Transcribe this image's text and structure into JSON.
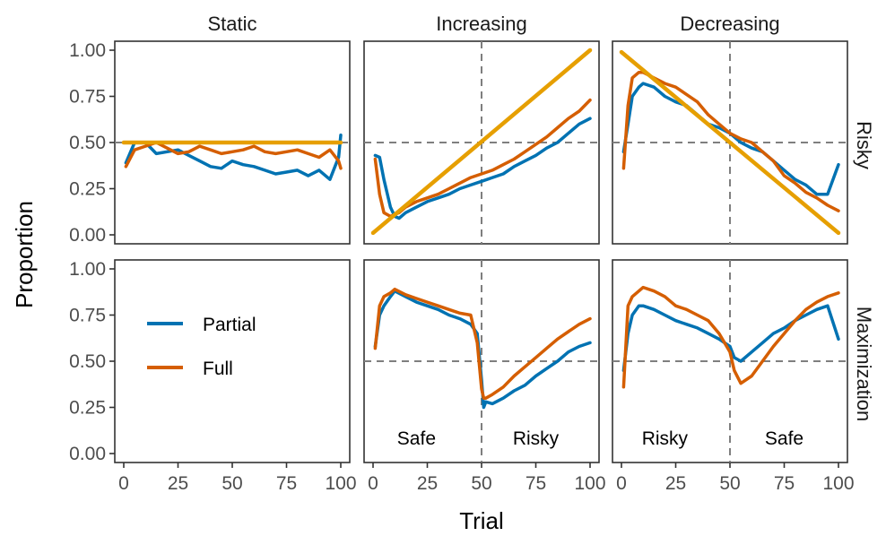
{
  "chart_data": {
    "type": "line",
    "xlabel": "Trial",
    "ylabel": "Proportion",
    "xlim": [
      0,
      100
    ],
    "ylim": [
      0,
      1
    ],
    "xticks": [
      "0",
      "25",
      "50",
      "75",
      "100"
    ],
    "yticks": [
      "0.00",
      "0.25",
      "0.50",
      "0.75",
      "1.00"
    ],
    "columns": [
      "Static",
      "Increasing",
      "Decreasing"
    ],
    "rows": [
      "Risky",
      "Maximization"
    ],
    "reference_lines": {
      "horizontal_y": 0.5,
      "vertical_x": 50,
      "style": "dashed"
    },
    "colors": {
      "Partial": "#0072B2",
      "Full": "#D55E00",
      "Expected": "#E69F00"
    },
    "legend": {
      "placement": "inside bottom-left panel",
      "entries": [
        "Partial",
        "Full"
      ]
    },
    "panels": [
      {
        "column": "Static",
        "row": "Risky",
        "series": [
          {
            "name": "Partial",
            "x": [
              1,
              5,
              10,
              15,
              20,
              25,
              30,
              35,
              40,
              45,
              50,
              55,
              60,
              65,
              70,
              75,
              80,
              85,
              90,
              95,
              99,
              100
            ],
            "values": [
              0.39,
              0.5,
              0.5,
              0.44,
              0.45,
              0.46,
              0.43,
              0.4,
              0.37,
              0.36,
              0.4,
              0.38,
              0.37,
              0.35,
              0.33,
              0.34,
              0.35,
              0.32,
              0.35,
              0.3,
              0.42,
              0.54
            ]
          },
          {
            "name": "Full",
            "x": [
              1,
              5,
              10,
              15,
              20,
              25,
              30,
              35,
              40,
              45,
              50,
              55,
              60,
              65,
              70,
              75,
              80,
              85,
              90,
              95,
              99,
              100
            ],
            "values": [
              0.37,
              0.46,
              0.48,
              0.5,
              0.47,
              0.44,
              0.45,
              0.48,
              0.46,
              0.44,
              0.45,
              0.46,
              0.48,
              0.45,
              0.44,
              0.45,
              0.46,
              0.44,
              0.42,
              0.46,
              0.4,
              0.36
            ]
          },
          {
            "name": "",
            "x": [
              0,
              100
            ],
            "values": [
              0.5,
              0.5
            ]
          }
        ]
      },
      {
        "column": "Increasing",
        "row": "Risky",
        "series": [
          {
            "name": "Partial",
            "x": [
              1,
              3,
              5,
              8,
              10,
              12,
              15,
              20,
              25,
              30,
              35,
              40,
              45,
              50,
              55,
              60,
              65,
              70,
              75,
              80,
              85,
              90,
              95,
              100
            ],
            "values": [
              0.43,
              0.42,
              0.3,
              0.15,
              0.1,
              0.09,
              0.12,
              0.15,
              0.18,
              0.2,
              0.22,
              0.25,
              0.27,
              0.29,
              0.31,
              0.33,
              0.37,
              0.4,
              0.43,
              0.47,
              0.5,
              0.55,
              0.6,
              0.63
            ]
          },
          {
            "name": "Full",
            "x": [
              1,
              3,
              5,
              8,
              10,
              12,
              15,
              20,
              25,
              30,
              35,
              40,
              45,
              50,
              55,
              60,
              65,
              70,
              75,
              80,
              85,
              90,
              95,
              100
            ],
            "values": [
              0.41,
              0.22,
              0.12,
              0.1,
              0.11,
              0.12,
              0.15,
              0.18,
              0.2,
              0.22,
              0.25,
              0.28,
              0.31,
              0.33,
              0.35,
              0.38,
              0.41,
              0.45,
              0.49,
              0.53,
              0.58,
              0.63,
              0.67,
              0.73
            ]
          },
          {
            "name": "",
            "x": [
              0,
              100
            ],
            "values": [
              0.01,
              1.0
            ]
          }
        ]
      },
      {
        "column": "Decreasing",
        "row": "Risky",
        "series": [
          {
            "name": "Partial",
            "x": [
              1,
              3,
              5,
              8,
              10,
              15,
              20,
              25,
              30,
              35,
              40,
              45,
              50,
              55,
              60,
              65,
              70,
              75,
              80,
              85,
              90,
              95,
              100
            ],
            "values": [
              0.45,
              0.6,
              0.75,
              0.8,
              0.82,
              0.8,
              0.75,
              0.72,
              0.7,
              0.65,
              0.6,
              0.58,
              0.55,
              0.5,
              0.47,
              0.45,
              0.4,
              0.35,
              0.3,
              0.27,
              0.22,
              0.22,
              0.38
            ]
          },
          {
            "name": "Full",
            "x": [
              1,
              3,
              5,
              8,
              10,
              15,
              20,
              25,
              30,
              35,
              40,
              45,
              50,
              55,
              60,
              65,
              70,
              75,
              80,
              85,
              90,
              95,
              100
            ],
            "values": [
              0.36,
              0.7,
              0.85,
              0.88,
              0.88,
              0.85,
              0.82,
              0.8,
              0.76,
              0.72,
              0.65,
              0.6,
              0.55,
              0.52,
              0.5,
              0.45,
              0.4,
              0.32,
              0.28,
              0.23,
              0.2,
              0.16,
              0.13
            ]
          },
          {
            "name": "",
            "x": [
              0,
              100
            ],
            "values": [
              0.99,
              0.01
            ]
          }
        ]
      },
      {
        "column": "Increasing",
        "row": "Maximization",
        "annotations": [
          "Safe",
          "Risky"
        ],
        "series": [
          {
            "name": "Partial",
            "x": [
              1,
              3,
              5,
              8,
              10,
              15,
              20,
              25,
              30,
              35,
              40,
              45,
              48,
              50,
              51,
              52,
              55,
              60,
              65,
              70,
              75,
              80,
              85,
              90,
              95,
              100
            ],
            "values": [
              0.58,
              0.75,
              0.8,
              0.85,
              0.88,
              0.85,
              0.82,
              0.8,
              0.78,
              0.75,
              0.73,
              0.7,
              0.65,
              0.4,
              0.25,
              0.28,
              0.27,
              0.3,
              0.34,
              0.37,
              0.42,
              0.46,
              0.5,
              0.55,
              0.58,
              0.6
            ]
          },
          {
            "name": "Full",
            "x": [
              1,
              3,
              5,
              8,
              10,
              15,
              20,
              25,
              30,
              35,
              40,
              45,
              48,
              50,
              51,
              52,
              55,
              60,
              65,
              70,
              75,
              80,
              85,
              90,
              95,
              100
            ],
            "values": [
              0.57,
              0.8,
              0.85,
              0.87,
              0.89,
              0.86,
              0.84,
              0.82,
              0.8,
              0.78,
              0.76,
              0.75,
              0.6,
              0.35,
              0.3,
              0.3,
              0.32,
              0.36,
              0.42,
              0.47,
              0.52,
              0.57,
              0.62,
              0.66,
              0.7,
              0.73
            ]
          }
        ]
      },
      {
        "column": "Decreasing",
        "row": "Maximization",
        "annotations": [
          "Risky",
          "Safe"
        ],
        "series": [
          {
            "name": "Partial",
            "x": [
              1,
              3,
              5,
              8,
              10,
              15,
              20,
              25,
              30,
              35,
              40,
              45,
              50,
              52,
              55,
              60,
              65,
              70,
              75,
              80,
              85,
              90,
              95,
              100
            ],
            "values": [
              0.45,
              0.65,
              0.75,
              0.8,
              0.8,
              0.78,
              0.75,
              0.72,
              0.7,
              0.68,
              0.65,
              0.62,
              0.58,
              0.52,
              0.5,
              0.55,
              0.6,
              0.65,
              0.68,
              0.72,
              0.75,
              0.78,
              0.8,
              0.62
            ]
          },
          {
            "name": "Full",
            "x": [
              1,
              3,
              5,
              8,
              10,
              15,
              20,
              25,
              30,
              35,
              40,
              45,
              50,
              52,
              55,
              60,
              65,
              70,
              75,
              80,
              85,
              90,
              95,
              100
            ],
            "values": [
              0.36,
              0.8,
              0.85,
              0.88,
              0.9,
              0.88,
              0.85,
              0.8,
              0.78,
              0.75,
              0.72,
              0.65,
              0.55,
              0.45,
              0.38,
              0.42,
              0.5,
              0.58,
              0.65,
              0.72,
              0.78,
              0.82,
              0.85,
              0.87
            ]
          }
        ]
      }
    ]
  }
}
